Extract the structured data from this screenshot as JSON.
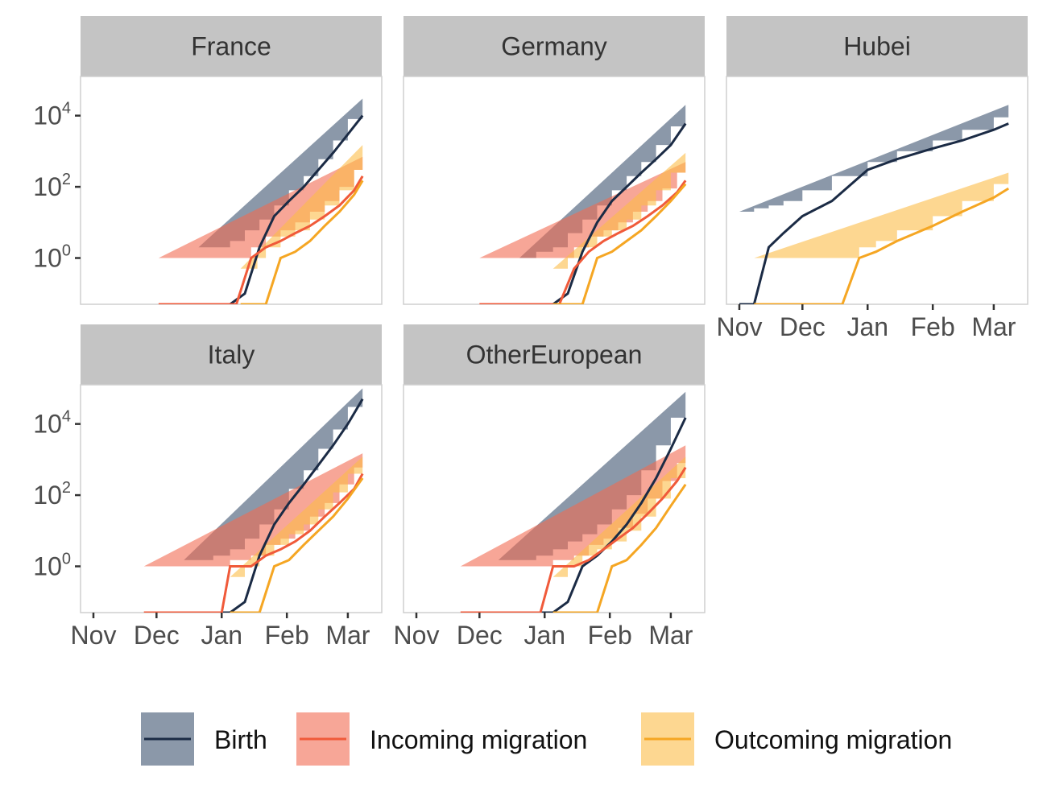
{
  "chart_data": {
    "type": "line",
    "y_scale": "log10",
    "y_ticks": [
      {
        "base": "10",
        "exp": "0",
        "value": 1
      },
      {
        "base": "10",
        "exp": "2",
        "value": 100
      },
      {
        "base": "10",
        "exp": "4",
        "value": 10000
      }
    ],
    "x_ticks": [
      "Nov",
      "Dec",
      "Jan",
      "Feb",
      "Mar"
    ],
    "x_tick_dates": [
      "2019-11-01",
      "2019-12-01",
      "2020-01-01",
      "2020-02-01",
      "2020-03-01"
    ],
    "colors": {
      "Birth": "#1b2b45",
      "Birth_band": "#3d5470",
      "Incoming migration": "#f05a3a",
      "Incoming migration_band": "#f26a52",
      "Outcoming migration": "#f5a623",
      "Outcoming migration_band": "#fbbd48",
      "strip": "#c4c4c4",
      "panel_border": "#cfcfcf"
    },
    "legend": {
      "position": "bottom",
      "entries": [
        "Birth",
        "Incoming migration",
        "Outcoming migration"
      ]
    },
    "panels": [
      {
        "title": "France",
        "series": [
          {
            "name": "Birth",
            "x": [
              "2019-12-21",
              "2019-12-28",
              "2020-01-05",
              "2020-01-12",
              "2020-01-19",
              "2020-01-26",
              "2020-02-02",
              "2020-02-09",
              "2020-02-16",
              "2020-02-23",
              "2020-03-01",
              "2020-03-08"
            ],
            "y": [
              0.05,
              0.05,
              0.05,
              0.1,
              2,
              15,
              40,
              100,
              300,
              900,
              3000,
              10000
            ],
            "lower": [
              0.05,
              0.05,
              0.05,
              0.05,
              0.6,
              3,
              10,
              30,
              80,
              250,
              800,
              2500
            ],
            "upper": [
              2,
              2,
              3,
              6,
              12,
              30,
              80,
              200,
              600,
              2000,
              8000,
              30000
            ]
          },
          {
            "name": "Incoming migration",
            "x": [
              "2019-12-02",
              "2019-12-10",
              "2019-12-20",
              "2020-01-01",
              "2020-01-08",
              "2020-01-15",
              "2020-01-22",
              "2020-01-29",
              "2020-02-05",
              "2020-02-12",
              "2020-02-19",
              "2020-02-26",
              "2020-03-04",
              "2020-03-08"
            ],
            "y": [
              0.05,
              0.05,
              0.05,
              0.05,
              0.05,
              1,
              2,
              3,
              5,
              8,
              15,
              30,
              80,
              200
            ],
            "lower": [
              0.05,
              0.05,
              0.05,
              0.05,
              0.05,
              0.05,
              0.05,
              0.05,
              0.6,
              1.5,
              3,
              8,
              25,
              60
            ],
            "upper": [
              1,
              1,
              1,
              1,
              1,
              2,
              4,
              6,
              10,
              20,
              40,
              100,
              300,
              700
            ]
          },
          {
            "name": "Outcoming migration",
            "x": [
              "2020-01-10",
              "2020-01-18",
              "2020-01-22",
              "2020-01-29",
              "2020-02-05",
              "2020-02-12",
              "2020-02-19",
              "2020-02-26",
              "2020-03-04",
              "2020-03-08"
            ],
            "y": [
              0.05,
              0.05,
              0.05,
              1,
              1.5,
              3,
              8,
              20,
              60,
              150
            ],
            "lower": [
              0.05,
              0.05,
              0.05,
              0.05,
              0.05,
              0.5,
              2,
              5,
              15,
              40
            ],
            "upper": [
              0.5,
              1,
              2,
              4,
              6,
              12,
              30,
              80,
              300,
              1500
            ]
          }
        ]
      },
      {
        "title": "Germany",
        "series": [
          {
            "name": "Birth",
            "x": [
              "2019-12-20",
              "2019-12-28",
              "2020-01-05",
              "2020-01-12",
              "2020-01-19",
              "2020-01-26",
              "2020-02-02",
              "2020-02-09",
              "2020-02-16",
              "2020-02-23",
              "2020-03-01",
              "2020-03-08"
            ],
            "y": [
              0.05,
              0.05,
              0.05,
              0.1,
              1.5,
              10,
              40,
              100,
              250,
              600,
              1500,
              6000
            ],
            "lower": [
              0.05,
              0.05,
              0.05,
              0.05,
              0.5,
              3,
              10,
              30,
              70,
              150,
              400,
              1500
            ],
            "upper": [
              1,
              1.5,
              2,
              5,
              12,
              30,
              80,
              200,
              500,
              1500,
              5000,
              20000
            ]
          },
          {
            "name": "Incoming migration",
            "x": [
              "2019-12-01",
              "2019-12-10",
              "2019-12-20",
              "2020-01-01",
              "2020-01-08",
              "2020-01-15",
              "2020-01-22",
              "2020-01-29",
              "2020-02-05",
              "2020-02-12",
              "2020-02-19",
              "2020-02-26",
              "2020-03-04",
              "2020-03-08"
            ],
            "y": [
              0.05,
              0.05,
              0.05,
              0.05,
              0.05,
              0.5,
              1.5,
              3,
              5,
              8,
              15,
              30,
              70,
              150
            ],
            "lower": [
              0.05,
              0.05,
              0.05,
              0.05,
              0.05,
              0.05,
              0.05,
              0.05,
              0.5,
              1.5,
              3,
              8,
              20,
              50
            ],
            "upper": [
              1,
              1,
              1,
              1,
              1,
              2,
              4,
              6,
              10,
              20,
              40,
              90,
              250,
              500
            ]
          },
          {
            "name": "Outcoming migration",
            "x": [
              "2020-01-05",
              "2020-01-12",
              "2020-01-19",
              "2020-01-26",
              "2020-02-02",
              "2020-02-09",
              "2020-02-16",
              "2020-02-23",
              "2020-03-01",
              "2020-03-08"
            ],
            "y": [
              0.05,
              0.05,
              0.05,
              1,
              1.5,
              3,
              6,
              15,
              40,
              120
            ],
            "lower": [
              0.05,
              0.05,
              0.05,
              0.05,
              0.05,
              0.5,
              1.5,
              4,
              10,
              30
            ],
            "upper": [
              0.5,
              1,
              2,
              4,
              6,
              12,
              30,
              80,
              250,
              900
            ]
          }
        ]
      },
      {
        "title": "Hubei",
        "series": [
          {
            "name": "Birth",
            "x": [
              "2019-11-01",
              "2019-11-08",
              "2019-11-15",
              "2019-11-22",
              "2019-12-01",
              "2019-12-15",
              "2020-01-01",
              "2020-01-15",
              "2020-02-01",
              "2020-02-15",
              "2020-03-01",
              "2020-03-08"
            ],
            "y": [
              0.05,
              0.05,
              2,
              5,
              15,
              40,
              300,
              600,
              1200,
              2000,
              4000,
              6000
            ],
            "lower": [
              0.05,
              0.05,
              0.05,
              0.05,
              0.5,
              5,
              150,
              350,
              800,
              1300,
              2500,
              3500
            ],
            "upper": [
              20,
              25,
              30,
              40,
              80,
              200,
              500,
              1000,
              2000,
              4000,
              9000,
              20000
            ]
          },
          {
            "name": "Outcoming migration",
            "x": [
              "2019-11-08",
              "2019-11-15",
              "2019-12-01",
              "2019-12-20",
              "2019-12-28",
              "2020-01-05",
              "2020-01-15",
              "2020-02-01",
              "2020-02-15",
              "2020-03-01",
              "2020-03-08"
            ],
            "y": [
              0.05,
              0.05,
              0.05,
              0.05,
              1,
              1.5,
              3,
              8,
              20,
              50,
              90
            ],
            "lower": [
              0.05,
              0.05,
              0.05,
              0.05,
              0.05,
              0.05,
              0.5,
              3,
              8,
              25,
              45
            ],
            "upper": [
              1,
              1,
              1,
              1,
              2,
              3,
              6,
              15,
              40,
              120,
              250
            ]
          }
        ]
      },
      {
        "title": "Italy",
        "series": [
          {
            "name": "Birth",
            "x": [
              "2019-12-14",
              "2019-12-28",
              "2020-01-05",
              "2020-01-12",
              "2020-01-19",
              "2020-01-26",
              "2020-02-02",
              "2020-02-09",
              "2020-02-16",
              "2020-02-23",
              "2020-03-01",
              "2020-03-08"
            ],
            "y": [
              0.05,
              0.05,
              0.05,
              0.1,
              2,
              15,
              60,
              200,
              700,
              2500,
              10000,
              50000
            ],
            "lower": [
              0.05,
              0.05,
              0.05,
              0.05,
              0.6,
              5,
              20,
              80,
              300,
              1000,
              4000,
              20000
            ],
            "upper": [
              1.5,
              2,
              3,
              6,
              15,
              40,
              150,
              500,
              2000,
              7000,
              30000,
              100000
            ]
          },
          {
            "name": "Incoming migration",
            "x": [
              "2019-11-25",
              "2019-12-05",
              "2019-12-20",
              "2020-01-01",
              "2020-01-05",
              "2020-01-15",
              "2020-01-22",
              "2020-01-29",
              "2020-02-05",
              "2020-02-12",
              "2020-02-19",
              "2020-02-26",
              "2020-03-04",
              "2020-03-08"
            ],
            "y": [
              0.05,
              0.05,
              0.05,
              0.05,
              1,
              1,
              2,
              3,
              5,
              10,
              25,
              60,
              150,
              400
            ],
            "lower": [
              0.05,
              0.05,
              0.05,
              0.05,
              0.05,
              0.05,
              0.05,
              0.5,
              1.5,
              4,
              10,
              25,
              70,
              150
            ],
            "upper": [
              1,
              1,
              1,
              1,
              1.5,
              2,
              4,
              6,
              10,
              25,
              60,
              200,
              600,
              1500
            ]
          },
          {
            "name": "Outcoming migration",
            "x": [
              "2020-01-05",
              "2020-01-12",
              "2020-01-19",
              "2020-01-26",
              "2020-02-02",
              "2020-02-09",
              "2020-02-16",
              "2020-02-23",
              "2020-03-01",
              "2020-03-08"
            ],
            "y": [
              0.05,
              0.05,
              0.05,
              1,
              1.5,
              4,
              10,
              25,
              80,
              300
            ],
            "lower": [
              0.05,
              0.05,
              0.05,
              0.05,
              0.05,
              0.5,
              3,
              8,
              30,
              100
            ],
            "upper": [
              0.5,
              1,
              2,
              4,
              8,
              15,
              40,
              120,
              400,
              1200
            ]
          }
        ]
      },
      {
        "title": "OtherEuropean",
        "series": [
          {
            "name": "Birth",
            "x": [
              "2019-12-10",
              "2019-12-28",
              "2020-01-05",
              "2020-01-12",
              "2020-01-19",
              "2020-01-26",
              "2020-02-02",
              "2020-02-09",
              "2020-02-16",
              "2020-02-23",
              "2020-03-01",
              "2020-03-08"
            ],
            "y": [
              0.05,
              0.05,
              0.05,
              0.1,
              1,
              2,
              5,
              15,
              60,
              300,
              2000,
              15000
            ],
            "lower": [
              0.05,
              0.05,
              0.05,
              0.05,
              0.05,
              0.5,
              1.5,
              5,
              20,
              100,
              600,
              5000
            ],
            "upper": [
              1.5,
              2,
              3,
              5,
              8,
              15,
              40,
              100,
              500,
              2500,
              15000,
              80000
            ]
          },
          {
            "name": "Incoming migration",
            "x": [
              "2019-11-22",
              "2019-12-05",
              "2019-12-20",
              "2019-12-30",
              "2020-01-05",
              "2020-01-15",
              "2020-01-22",
              "2020-01-29",
              "2020-02-05",
              "2020-02-12",
              "2020-02-19",
              "2020-02-26",
              "2020-03-04",
              "2020-03-08"
            ],
            "y": [
              0.05,
              0.05,
              0.05,
              0.05,
              1,
              1,
              1.5,
              3,
              6,
              12,
              30,
              80,
              250,
              600
            ],
            "lower": [
              0.05,
              0.05,
              0.05,
              0.05,
              0.05,
              0.05,
              0.05,
              0.5,
              2,
              5,
              12,
              30,
              100,
              250
            ],
            "upper": [
              1,
              1,
              1,
              1,
              1.5,
              2,
              4,
              6,
              12,
              30,
              80,
              250,
              800,
              2500
            ]
          },
          {
            "name": "Outcoming migration",
            "x": [
              "2020-01-05",
              "2020-01-12",
              "2020-01-19",
              "2020-01-26",
              "2020-02-02",
              "2020-02-09",
              "2020-02-16",
              "2020-02-23",
              "2020-03-01",
              "2020-03-08"
            ],
            "y": [
              0.05,
              0.05,
              0.05,
              0.05,
              1,
              1.5,
              4,
              12,
              50,
              200
            ],
            "lower": [
              0.05,
              0.05,
              0.05,
              0.05,
              0.05,
              0.05,
              1,
              4,
              15,
              60
            ],
            "upper": [
              0.5,
              1,
              2,
              3,
              5,
              10,
              25,
              80,
              300,
              1200
            ]
          }
        ]
      }
    ]
  }
}
